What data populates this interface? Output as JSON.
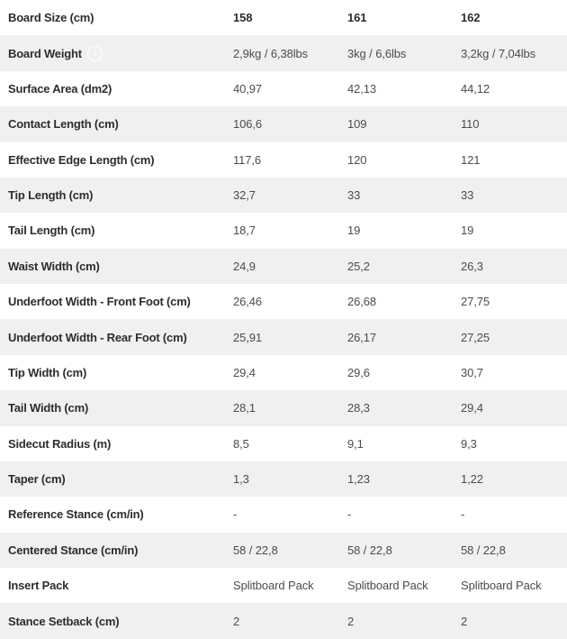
{
  "colors": {
    "row_alt_background": "#f0f0f0",
    "label_text": "#2d2d2d",
    "value_text": "#4c4c4c",
    "info_icon": "#ffffff"
  },
  "icons": {
    "info_glyph": "i"
  },
  "table": {
    "rows": [
      {
        "label": "Board Size (cm)",
        "values": [
          "158",
          "161",
          "162"
        ]
      },
      {
        "label": "Board Weight",
        "values": [
          "2,9kg / 6,38lbs",
          "3kg / 6,6lbs",
          "3,2kg / 7,04lbs"
        ]
      },
      {
        "label": "Surface Area (dm2)",
        "values": [
          "40,97",
          "42,13",
          "44,12"
        ]
      },
      {
        "label": "Contact Length (cm)",
        "values": [
          "106,6",
          "109",
          "110"
        ]
      },
      {
        "label": "Effective Edge Length (cm)",
        "values": [
          "117,6",
          "120",
          "121"
        ]
      },
      {
        "label": "Tip Length (cm)",
        "values": [
          "32,7",
          "33",
          "33"
        ]
      },
      {
        "label": "Tail Length (cm)",
        "values": [
          "18,7",
          "19",
          "19"
        ]
      },
      {
        "label": "Waist Width (cm)",
        "values": [
          "24,9",
          "25,2",
          "26,3"
        ]
      },
      {
        "label": "Underfoot Width - Front Foot (cm)",
        "values": [
          "26,46",
          "26,68",
          "27,75"
        ]
      },
      {
        "label": "Underfoot Width - Rear Foot (cm)",
        "values": [
          "25,91",
          "26,17",
          "27,25"
        ]
      },
      {
        "label": "Tip Width (cm)",
        "values": [
          "29,4",
          "29,6",
          "30,7"
        ]
      },
      {
        "label": "Tail Width (cm)",
        "values": [
          "28,1",
          "28,3",
          "29,4"
        ]
      },
      {
        "label": "Sidecut Radius (m)",
        "values": [
          "8,5",
          "9,1",
          "9,3"
        ]
      },
      {
        "label": "Taper (cm)",
        "values": [
          "1,3",
          "1,23",
          "1,22"
        ]
      },
      {
        "label": "Reference Stance (cm/in)",
        "values": [
          "-",
          "-",
          "-"
        ]
      },
      {
        "label": "Centered Stance (cm/in)",
        "values": [
          "58 / 22,8",
          "58 / 22,8",
          "58 / 22,8"
        ]
      },
      {
        "label": "Insert Pack",
        "values": [
          "Splitboard Pack",
          "Splitboard Pack",
          "Splitboard Pack"
        ]
      },
      {
        "label": "Stance Setback (cm)",
        "values": [
          "2",
          "2",
          "2"
        ]
      }
    ]
  }
}
